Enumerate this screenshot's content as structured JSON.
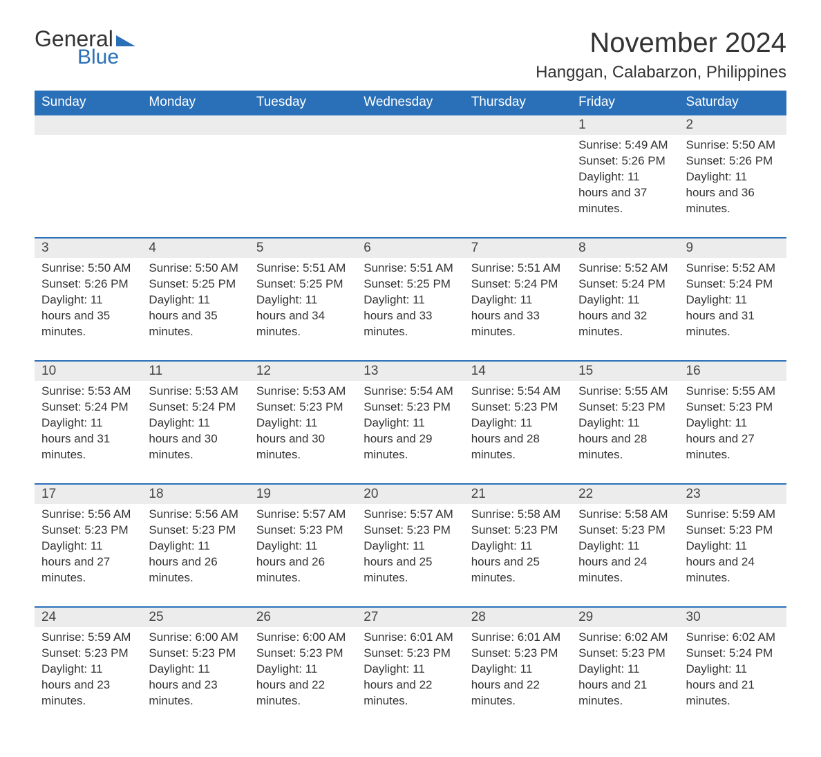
{
  "logo": {
    "word1": "General",
    "word2": "Blue"
  },
  "title": "November 2024",
  "location": "Hanggan, Calabarzon, Philippines",
  "header_bg": "#2a70b8",
  "header_fg": "#ffffff",
  "daynum_bg": "#ececec",
  "row_border": "#2a70b8",
  "columns": [
    "Sunday",
    "Monday",
    "Tuesday",
    "Wednesday",
    "Thursday",
    "Friday",
    "Saturday"
  ],
  "weeks": [
    [
      null,
      null,
      null,
      null,
      null,
      {
        "n": "1",
        "sunrise": "5:49 AM",
        "sunset": "5:26 PM",
        "daylight": "11 hours and 37 minutes."
      },
      {
        "n": "2",
        "sunrise": "5:50 AM",
        "sunset": "5:26 PM",
        "daylight": "11 hours and 36 minutes."
      }
    ],
    [
      {
        "n": "3",
        "sunrise": "5:50 AM",
        "sunset": "5:26 PM",
        "daylight": "11 hours and 35 minutes."
      },
      {
        "n": "4",
        "sunrise": "5:50 AM",
        "sunset": "5:25 PM",
        "daylight": "11 hours and 35 minutes."
      },
      {
        "n": "5",
        "sunrise": "5:51 AM",
        "sunset": "5:25 PM",
        "daylight": "11 hours and 34 minutes."
      },
      {
        "n": "6",
        "sunrise": "5:51 AM",
        "sunset": "5:25 PM",
        "daylight": "11 hours and 33 minutes."
      },
      {
        "n": "7",
        "sunrise": "5:51 AM",
        "sunset": "5:24 PM",
        "daylight": "11 hours and 33 minutes."
      },
      {
        "n": "8",
        "sunrise": "5:52 AM",
        "sunset": "5:24 PM",
        "daylight": "11 hours and 32 minutes."
      },
      {
        "n": "9",
        "sunrise": "5:52 AM",
        "sunset": "5:24 PM",
        "daylight": "11 hours and 31 minutes."
      }
    ],
    [
      {
        "n": "10",
        "sunrise": "5:53 AM",
        "sunset": "5:24 PM",
        "daylight": "11 hours and 31 minutes."
      },
      {
        "n": "11",
        "sunrise": "5:53 AM",
        "sunset": "5:24 PM",
        "daylight": "11 hours and 30 minutes."
      },
      {
        "n": "12",
        "sunrise": "5:53 AM",
        "sunset": "5:23 PM",
        "daylight": "11 hours and 30 minutes."
      },
      {
        "n": "13",
        "sunrise": "5:54 AM",
        "sunset": "5:23 PM",
        "daylight": "11 hours and 29 minutes."
      },
      {
        "n": "14",
        "sunrise": "5:54 AM",
        "sunset": "5:23 PM",
        "daylight": "11 hours and 28 minutes."
      },
      {
        "n": "15",
        "sunrise": "5:55 AM",
        "sunset": "5:23 PM",
        "daylight": "11 hours and 28 minutes."
      },
      {
        "n": "16",
        "sunrise": "5:55 AM",
        "sunset": "5:23 PM",
        "daylight": "11 hours and 27 minutes."
      }
    ],
    [
      {
        "n": "17",
        "sunrise": "5:56 AM",
        "sunset": "5:23 PM",
        "daylight": "11 hours and 27 minutes."
      },
      {
        "n": "18",
        "sunrise": "5:56 AM",
        "sunset": "5:23 PM",
        "daylight": "11 hours and 26 minutes."
      },
      {
        "n": "19",
        "sunrise": "5:57 AM",
        "sunset": "5:23 PM",
        "daylight": "11 hours and 26 minutes."
      },
      {
        "n": "20",
        "sunrise": "5:57 AM",
        "sunset": "5:23 PM",
        "daylight": "11 hours and 25 minutes."
      },
      {
        "n": "21",
        "sunrise": "5:58 AM",
        "sunset": "5:23 PM",
        "daylight": "11 hours and 25 minutes."
      },
      {
        "n": "22",
        "sunrise": "5:58 AM",
        "sunset": "5:23 PM",
        "daylight": "11 hours and 24 minutes."
      },
      {
        "n": "23",
        "sunrise": "5:59 AM",
        "sunset": "5:23 PM",
        "daylight": "11 hours and 24 minutes."
      }
    ],
    [
      {
        "n": "24",
        "sunrise": "5:59 AM",
        "sunset": "5:23 PM",
        "daylight": "11 hours and 23 minutes."
      },
      {
        "n": "25",
        "sunrise": "6:00 AM",
        "sunset": "5:23 PM",
        "daylight": "11 hours and 23 minutes."
      },
      {
        "n": "26",
        "sunrise": "6:00 AM",
        "sunset": "5:23 PM",
        "daylight": "11 hours and 22 minutes."
      },
      {
        "n": "27",
        "sunrise": "6:01 AM",
        "sunset": "5:23 PM",
        "daylight": "11 hours and 22 minutes."
      },
      {
        "n": "28",
        "sunrise": "6:01 AM",
        "sunset": "5:23 PM",
        "daylight": "11 hours and 22 minutes."
      },
      {
        "n": "29",
        "sunrise": "6:02 AM",
        "sunset": "5:23 PM",
        "daylight": "11 hours and 21 minutes."
      },
      {
        "n": "30",
        "sunrise": "6:02 AM",
        "sunset": "5:24 PM",
        "daylight": "11 hours and 21 minutes."
      }
    ]
  ],
  "labels": {
    "sunrise": "Sunrise: ",
    "sunset": "Sunset: ",
    "daylight": "Daylight: "
  }
}
